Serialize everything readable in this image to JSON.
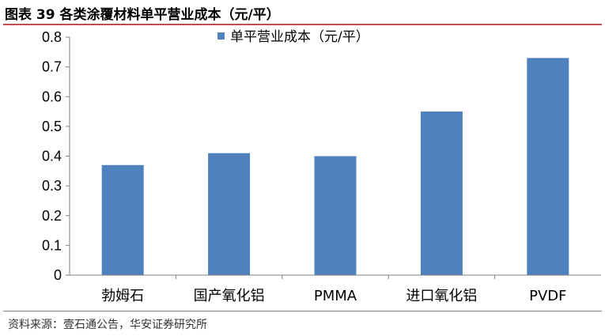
{
  "header": {
    "title": "图表 39 各类涂覆材料单平营业成本（元/平）"
  },
  "footer": {
    "source": "资料来源：壹石通公告，华安证券研究所"
  },
  "colors": {
    "bar": "#4f81bd",
    "accent": "#c0504d",
    "axis": "#808080"
  },
  "chart_data": {
    "type": "bar",
    "categories": [
      "勃姆石",
      "国产氧化铝",
      "PMMA",
      "进口氧化铝",
      "PVDF"
    ],
    "series": [
      {
        "name": "单平营业成本（元/平）",
        "values": [
          0.37,
          0.41,
          0.4,
          0.55,
          0.73
        ]
      }
    ],
    "ylim": [
      0,
      0.8
    ],
    "yticks": [
      "0",
      "0.1",
      "0.2",
      "0.3",
      "0.4",
      "0.5",
      "0.6",
      "0.7",
      "0.8"
    ],
    "grid": false,
    "legend": "top-center"
  }
}
